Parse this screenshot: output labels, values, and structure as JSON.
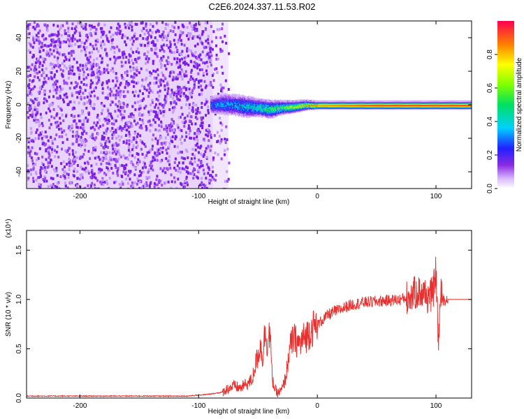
{
  "title": "C2E6.2024.337.11.53.R02",
  "chart_data": [
    {
      "type": "heatmap",
      "xlabel": "Height of straight line (km)",
      "ylabel": "Frequency (Hz)",
      "xlim": [
        -245,
        130
      ],
      "ylim": [
        -50,
        50
      ],
      "xticks": [
        -200,
        -100,
        0,
        100
      ],
      "yticks": [
        -40,
        -20,
        0,
        20,
        40
      ],
      "xtick_labels": [
        "-200",
        "-100",
        "0",
        "100"
      ],
      "ytick_labels": [
        "-40",
        "-20",
        "0",
        "20",
        "40"
      ],
      "colorbar": {
        "label": "Normalized spectral amplitude",
        "range": [
          0.0,
          1.0
        ],
        "ticks": [
          0.0,
          0.2,
          0.4,
          0.6,
          0.8
        ],
        "tick_labels": [
          "0.0",
          "0.2",
          "0.4",
          "0.6",
          "0.8"
        ]
      },
      "noise_region": {
        "x_from": -245,
        "x_to": -75,
        "freq_range": [
          -50,
          50
        ],
        "amplitude": 0.1
      },
      "signal_band": [
        {
          "x": -90,
          "freq": 0.0,
          "halfwidth": 4,
          "amplitude": 0.25
        },
        {
          "x": -80,
          "freq": 0.5,
          "halfwidth": 5,
          "amplitude": 0.3
        },
        {
          "x": -70,
          "freq": 0.0,
          "halfwidth": 5,
          "amplitude": 0.3
        },
        {
          "x": -60,
          "freq": -1.0,
          "halfwidth": 5,
          "amplitude": 0.35
        },
        {
          "x": -50,
          "freq": -1.5,
          "halfwidth": 4,
          "amplitude": 0.4
        },
        {
          "x": -40,
          "freq": -2.5,
          "halfwidth": 4,
          "amplitude": 0.45
        },
        {
          "x": -30,
          "freq": -1.5,
          "halfwidth": 3,
          "amplitude": 0.5
        },
        {
          "x": -20,
          "freq": -1.0,
          "halfwidth": 2.5,
          "amplitude": 0.6
        },
        {
          "x": -10,
          "freq": 0.0,
          "halfwidth": 2,
          "amplitude": 0.7
        },
        {
          "x": 0,
          "freq": 0.0,
          "halfwidth": 1.5,
          "amplitude": 0.85
        },
        {
          "x": 50,
          "freq": 0.0,
          "halfwidth": 1.5,
          "amplitude": 0.95
        },
        {
          "x": 100,
          "freq": 0.0,
          "halfwidth": 1.5,
          "amplitude": 0.95
        },
        {
          "x": 130,
          "freq": 0.0,
          "halfwidth": 1.5,
          "amplitude": 0.95
        }
      ]
    },
    {
      "type": "line",
      "xlabel": "Height of straight line (km)",
      "ylabel": "SNR (10 * v/v)",
      "yunit": "(x10⁴)",
      "xlim": [
        -245,
        130
      ],
      "ylim": [
        0.0,
        1.7
      ],
      "xticks": [
        -200,
        -100,
        0,
        100
      ],
      "yticks": [
        0.0,
        0.5,
        1.0,
        1.5
      ],
      "xtick_labels": [
        "-200",
        "-100",
        "0",
        "100"
      ],
      "ytick_labels": [
        "0.0",
        "0.5",
        "1.0",
        "1.5"
      ],
      "series": [
        {
          "color": "#e8312f",
          "x": [
            -245,
            -200,
            -150,
            -110,
            -100,
            -90,
            -80,
            -75,
            -70,
            -65,
            -60,
            -55,
            -52,
            -50,
            -48,
            -46,
            -44,
            -42,
            -40,
            -38,
            -36,
            -34,
            -32,
            -30,
            -28,
            -26,
            -24,
            -22,
            -20,
            -18,
            -16,
            -14,
            -12,
            -10,
            -8,
            -5,
            0,
            5,
            10,
            15,
            20,
            25,
            30,
            40,
            50,
            60,
            70,
            75,
            80,
            85,
            90,
            95,
            98,
            100,
            102,
            104,
            106,
            110,
            120,
            130
          ],
          "y": [
            0.02,
            0.02,
            0.02,
            0.02,
            0.03,
            0.04,
            0.06,
            0.1,
            0.12,
            0.1,
            0.14,
            0.18,
            0.35,
            0.42,
            0.55,
            0.4,
            0.7,
            0.55,
            0.68,
            0.2,
            0.1,
            0.05,
            0.06,
            0.08,
            0.15,
            0.25,
            0.45,
            0.55,
            0.6,
            0.58,
            0.55,
            0.55,
            0.6,
            0.62,
            0.65,
            0.7,
            0.74,
            0.8,
            0.85,
            0.88,
            0.9,
            0.93,
            0.95,
            0.97,
            0.98,
            0.99,
            1.0,
            1.02,
            1.05,
            1.08,
            1.05,
            1.02,
            1.1,
            1.3,
            0.55,
            1.05,
            1.0,
            1.0,
            1.0,
            1.0
          ]
        }
      ]
    }
  ]
}
